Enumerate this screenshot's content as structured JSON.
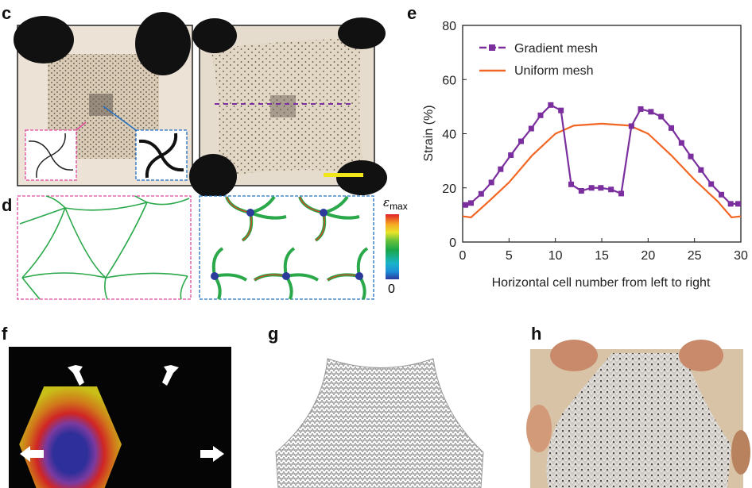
{
  "panel_labels": {
    "c": "c",
    "d": "d",
    "e": "e",
    "f": "f",
    "g": "g",
    "h": "h"
  },
  "colorbar": {
    "top_label": "ε",
    "top_sub": "max",
    "bottom_label": "0",
    "colors": [
      "#2b3a9b",
      "#1e8fd8",
      "#19b4c8",
      "#1aa64a",
      "#6cc23a",
      "#e8e52a",
      "#f5a623",
      "#e83a1e",
      "#e0202a"
    ]
  },
  "colors": {
    "gradient": "#7b2f9e",
    "uniform": "#f26522",
    "pink_frame": "#e0479e",
    "blue_frame": "#1f6fc0",
    "scale_bar": "#f0e61a"
  },
  "chart_data": {
    "type": "line",
    "xlabel": "Horizontal cell number from left to right",
    "ylabel": "Strain (%)",
    "xlim": [
      0,
      30
    ],
    "ylim": [
      0,
      80
    ],
    "xticks": [
      "0",
      "5",
      "10",
      "15",
      "20",
      "25",
      "30"
    ],
    "yticks": [
      "0",
      "20",
      "40",
      "60",
      "80"
    ],
    "grid": false,
    "legend": "top-left",
    "series": [
      {
        "name": "Gradient mesh",
        "marker": "square",
        "color": "#7b2f9e",
        "x": [
          0.3,
          0.9,
          2.0,
          3.1,
          4.1,
          5.2,
          6.3,
          7.4,
          8.4,
          9.5,
          10.6,
          11.7,
          12.8,
          13.9,
          14.9,
          16.0,
          17.1,
          18.2,
          19.2,
          20.3,
          21.4,
          22.5,
          23.6,
          24.6,
          25.7,
          26.8,
          27.9,
          28.9,
          29.7
        ],
        "y": [
          13.7,
          14.4,
          17.8,
          22.0,
          26.9,
          32.1,
          37.2,
          41.9,
          46.8,
          50.6,
          48.6,
          21.3,
          18.9,
          20.0,
          20.0,
          19.4,
          17.9,
          42.8,
          49.1,
          48.1,
          46.3,
          42.1,
          36.6,
          31.6,
          26.6,
          21.4,
          17.5,
          14.1,
          14.1
        ]
      },
      {
        "name": "Uniform mesh",
        "marker": "none",
        "color": "#f26522",
        "x": [
          0,
          0.9,
          2.5,
          5,
          7.5,
          10,
          12,
          15,
          18,
          20,
          22.5,
          25,
          27.5,
          29,
          30
        ],
        "y": [
          9.5,
          9.1,
          14,
          22,
          32,
          40,
          43,
          43.7,
          43,
          40,
          32,
          23,
          15,
          9.1,
          9.5
        ]
      }
    ]
  }
}
